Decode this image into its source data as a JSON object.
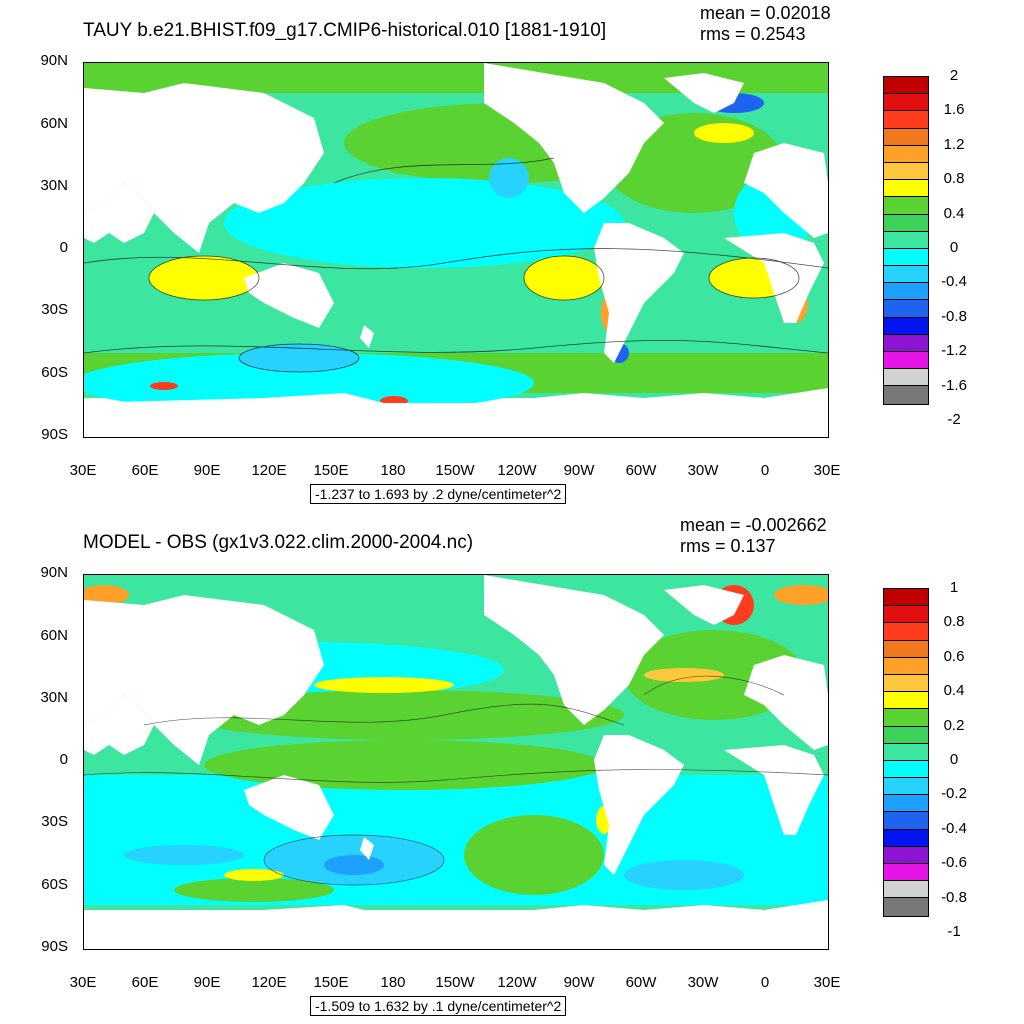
{
  "panels": [
    {
      "title": "TAUY b.e21.BHIST.f09_g17.CMIP6-historical.010 [1881-1910]",
      "mean": "mean = 0.02018",
      "rms": "rms = 0.2543",
      "range_text": "-1.237 to 1.693 by .2 dyne/centimeter^2",
      "colorbar": {
        "labels": [
          "2",
          "1.6",
          "1.2",
          "0.8",
          "0.4",
          "0",
          "-0.4",
          "-0.8",
          "-1.2",
          "-1.6",
          "-2"
        ],
        "colors": [
          "#c00000",
          "#e01010",
          "#ff3c1e",
          "#f0781e",
          "#ffa028",
          "#ffc83c",
          "#ffff00",
          "#5ad232",
          "#3cd25a",
          "#3ce6a0",
          "#00ffff",
          "#28d2ff",
          "#1ea0ff",
          "#1e64f0",
          "#0014f0",
          "#8c14d2",
          "#e614e6",
          "#d2d2d2",
          "#787878"
        ]
      }
    },
    {
      "title": "MODEL - OBS (gx1v3.022.clim.2000-2004.nc)",
      "mean": "mean = -0.002662",
      "rms": "rms = 0.137",
      "range_text": "-1.509 to 1.632 by .1 dyne/centimeter^2",
      "colorbar": {
        "labels": [
          "1",
          "0.8",
          "0.6",
          "0.4",
          "0.2",
          "0",
          "-0.2",
          "-0.4",
          "-0.6",
          "-0.8",
          "-1"
        ],
        "colors": [
          "#c00000",
          "#e01010",
          "#ff3c1e",
          "#f0781e",
          "#ffa028",
          "#ffc83c",
          "#ffff00",
          "#5ad232",
          "#3cd25a",
          "#3ce6a0",
          "#00ffff",
          "#28d2ff",
          "#1ea0ff",
          "#1e64f0",
          "#0014f0",
          "#8c14d2",
          "#e614e6",
          "#d2d2d2",
          "#787878"
        ]
      }
    }
  ],
  "axes": {
    "lat_labels": [
      "90N",
      "60N",
      "30N",
      "0",
      "30S",
      "60S",
      "90S"
    ],
    "lon_labels": [
      "30E",
      "60E",
      "90E",
      "120E",
      "150E",
      "180",
      "150W",
      "120W",
      "90W",
      "60W",
      "30W",
      "0",
      "30E"
    ]
  },
  "colors": {
    "land": "#ffffff",
    "ocean_base": "#3ce6a0"
  }
}
